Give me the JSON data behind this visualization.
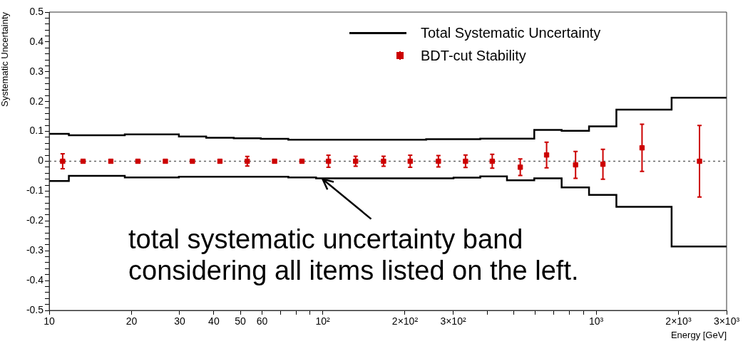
{
  "chart_data": {
    "type": "scatter",
    "xlabel": "Energy [GeV]",
    "ylabel": "Systematic Uncertainty",
    "log": "x",
    "grid": false,
    "legend": "top right",
    "xlim": [
      10,
      3000
    ],
    "ylim": [
      -0.5,
      0.5
    ],
    "xticks": [
      10,
      20,
      30,
      40,
      50,
      60,
      {
        "value": 70,
        "label": null
      },
      {
        "value": 80,
        "label": null
      },
      {
        "value": 90,
        "label": null
      },
      {
        "value": 100,
        "label": "10²"
      },
      {
        "value": 200,
        "label": "2×10²"
      },
      {
        "value": 300,
        "label": "3×10²"
      },
      {
        "value": 400,
        "label": null
      },
      {
        "value": 500,
        "label": null
      },
      {
        "value": 600,
        "label": null
      },
      {
        "value": 700,
        "label": null
      },
      {
        "value": 800,
        "label": null
      },
      {
        "value": 900,
        "label": null
      },
      {
        "value": 1000,
        "label": "10³"
      },
      {
        "value": 2000,
        "label": "2×10³"
      },
      {
        "value": 3000,
        "label": "3×10³"
      }
    ],
    "yticks": [
      -0.5,
      {
        "value": -0.48,
        "label": null
      },
      {
        "value": -0.46,
        "label": null
      },
      {
        "value": -0.44,
        "label": null
      },
      {
        "value": -0.42,
        "label": null
      },
      -0.4,
      {
        "value": -0.38,
        "label": null
      },
      {
        "value": -0.36,
        "label": null
      },
      {
        "value": -0.34,
        "label": null
      },
      {
        "value": -0.32,
        "label": null
      },
      -0.3,
      {
        "value": -0.28,
        "label": null
      },
      {
        "value": -0.26,
        "label": null
      },
      {
        "value": -0.24,
        "label": null
      },
      {
        "value": -0.22,
        "label": null
      },
      -0.2,
      {
        "value": -0.18,
        "label": null
      },
      {
        "value": -0.16,
        "label": null
      },
      {
        "value": -0.14,
        "label": null
      },
      {
        "value": -0.12,
        "label": null
      },
      -0.1,
      {
        "value": -0.08,
        "label": null
      },
      {
        "value": -0.06,
        "label": null
      },
      {
        "value": -0.04,
        "label": null
      },
      {
        "value": -0.02,
        "label": null
      },
      0,
      {
        "value": 0.02,
        "label": null
      },
      {
        "value": 0.04,
        "label": null
      },
      {
        "value": 0.06,
        "label": null
      },
      {
        "value": 0.08,
        "label": null
      },
      0.1,
      {
        "value": 0.12,
        "label": null
      },
      {
        "value": 0.14,
        "label": null
      },
      {
        "value": 0.16,
        "label": null
      },
      {
        "value": 0.18,
        "label": null
      },
      0.2,
      {
        "value": 0.22,
        "label": null
      },
      {
        "value": 0.24,
        "label": null
      },
      {
        "value": 0.26,
        "label": null
      },
      {
        "value": 0.28,
        "label": null
      },
      0.3,
      {
        "value": 0.32,
        "label": null
      },
      {
        "value": 0.34,
        "label": null
      },
      {
        "value": 0.36,
        "label": null
      },
      {
        "value": 0.38,
        "label": null
      },
      0.4,
      {
        "value": 0.42,
        "label": null
      },
      {
        "value": 0.44,
        "label": null
      },
      {
        "value": 0.46,
        "label": null
      },
      {
        "value": 0.48,
        "label": null
      },
      0.5
    ],
    "ref_lines": [
      {
        "axis": "y",
        "value": 0,
        "color": "#666666",
        "line_style": "dotted"
      }
    ],
    "series": [
      {
        "name": "Total Systematic Uncertainty",
        "type": "step",
        "color": "#000000",
        "x": [
          10,
          11.8,
          18.9,
          29.8,
          37.5,
          47.3,
          59.4,
          74.9,
          94.6,
          150,
          239,
          301,
          377,
          472,
          594,
          748,
          942,
          1186,
          1888,
          3000
        ],
        "values": [
          0.092,
          0.087,
          0.09,
          0.083,
          0.079,
          0.077,
          0.075,
          0.072,
          0.072,
          0.072,
          0.074,
          0.074,
          0.076,
          0.076,
          0.105,
          0.102,
          0.117,
          0.173,
          0.213,
          0.213
        ]
      },
      {
        "type": "step",
        "color": "#000000",
        "x": [
          10,
          11.8,
          18.9,
          29.8,
          37.5,
          47.3,
          59.4,
          74.9,
          94.6,
          150,
          239,
          301,
          377,
          472,
          594,
          748,
          942,
          1186,
          1888,
          3000
        ],
        "values": [
          -0.066,
          -0.049,
          -0.054,
          -0.052,
          -0.052,
          -0.052,
          -0.052,
          -0.054,
          -0.057,
          -0.057,
          -0.057,
          -0.055,
          -0.051,
          -0.064,
          -0.057,
          -0.088,
          -0.113,
          -0.153,
          -0.286,
          -0.286
        ]
      },
      {
        "name": "BDT-cut Stability",
        "color": "#cc0000",
        "marker": "square",
        "x": [
          11.2,
          13.3,
          16.8,
          21.1,
          26.6,
          33.4,
          42.1,
          53,
          66.7,
          84,
          105,
          132,
          167,
          209,
          265,
          333,
          417,
          528,
          659,
          841,
          1059,
          1472,
          2388
        ],
        "values": [
          0,
          0,
          0,
          0,
          0,
          0,
          0,
          0,
          0,
          0,
          0,
          0,
          0,
          0,
          0,
          0,
          0,
          -0.02,
          0.021,
          -0.012,
          -0.01,
          0.045,
          0
        ],
        "errors": [
          0.025,
          0.005,
          0.005,
          0.005,
          null,
          0.005,
          0.005,
          0.016,
          0.005,
          0.005,
          0.02,
          0.017,
          0.017,
          0.02,
          0.019,
          0.021,
          0.023,
          0.028,
          0.043,
          0.045,
          0.05,
          0.079,
          0.12
        ]
      }
    ],
    "annotations": [
      {
        "text": "total systematic uncertainty band\nconsidering all items listed on the left.",
        "x": 100,
        "y": -0.06
      }
    ]
  }
}
